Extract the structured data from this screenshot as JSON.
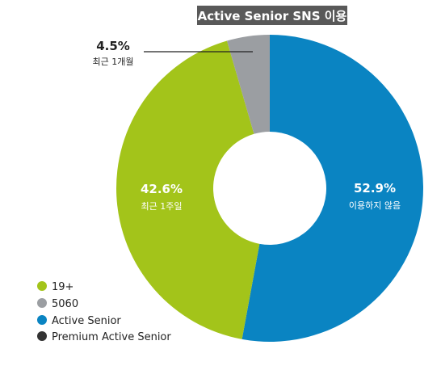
{
  "chart_data": {
    "type": "pie",
    "title": "Active Senior SNS 이용",
    "slices": [
      {
        "label": "이용하지 않음",
        "value": 52.9,
        "value_label": "52.9%",
        "color": "#0a84c2"
      },
      {
        "label": "최근 1주일",
        "value": 42.6,
        "value_label": "42.6%",
        "color": "#a3c41a"
      },
      {
        "label": "최근 1개월",
        "value": 4.5,
        "value_label": "4.5%",
        "color": "#9b9ea2"
      }
    ],
    "legend": [
      {
        "label": "19+",
        "color": "#a3c41a"
      },
      {
        "label": "5060",
        "color": "#9b9ea2"
      },
      {
        "label": "Active Senior",
        "color": "#0a84c2"
      },
      {
        "label": "Premium Active Senior",
        "color": "#333333"
      }
    ],
    "legend_position": "bottom-left",
    "donut": true
  }
}
